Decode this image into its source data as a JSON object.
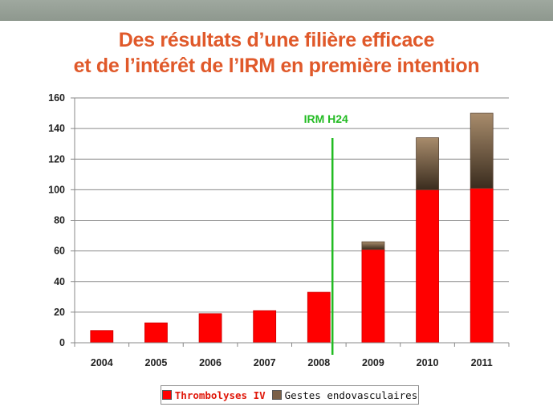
{
  "slide": {
    "title_line1": "Des résultats d’une filière efficace",
    "title_line2": "et de l’intérêt de l’IRM en première intention"
  },
  "chart_data": {
    "type": "bar",
    "stacked": true,
    "categories": [
      "2004",
      "2005",
      "2006",
      "2007",
      "2008",
      "2009",
      "2010",
      "2011"
    ],
    "series": [
      {
        "name": "Thrombolyses IV",
        "values": [
          8,
          13,
          19,
          21,
          33,
          61,
          100,
          101
        ],
        "color": "#ff0000"
      },
      {
        "name": "Gestes endovasculaires",
        "values": [
          0,
          0,
          0,
          0,
          0,
          5,
          34,
          49
        ],
        "color": "#7a6048"
      }
    ],
    "ylim": [
      0,
      160
    ],
    "yticks": [
      0,
      20,
      40,
      60,
      80,
      100,
      120,
      140,
      160
    ],
    "grid": true,
    "legend_position": "bottom",
    "annotation": {
      "text": "IRM H24",
      "color": "#22bb22",
      "between": [
        "2008",
        "2009"
      ]
    }
  }
}
